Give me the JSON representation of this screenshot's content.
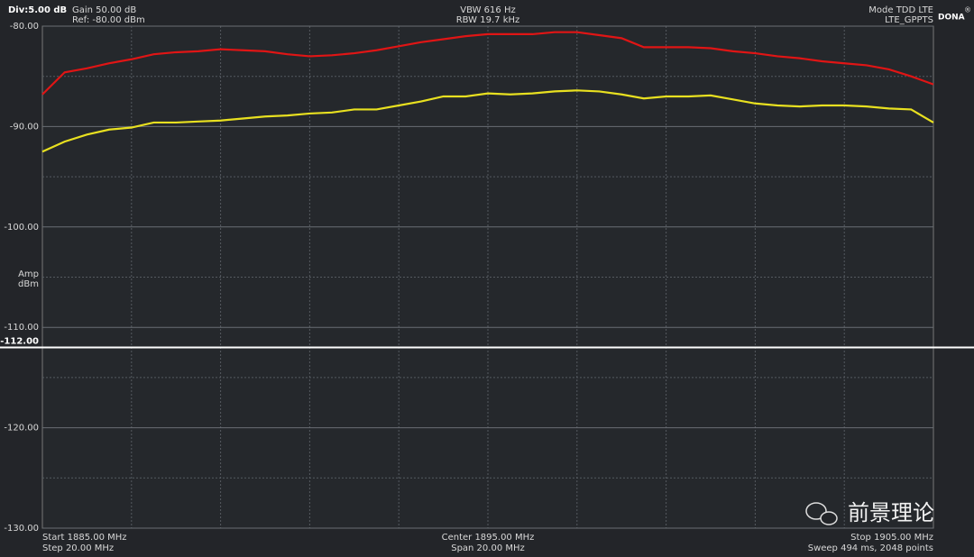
{
  "chart_data": {
    "type": "line",
    "header": {
      "div": "Div:5.00 dB",
      "gain": "Gain 50.00 dB",
      "ref": "Ref: -80.00 dBm",
      "vbw": "VBW 616 Hz",
      "rbw": "RBW 19.7 kHz",
      "mode": "Mode TDD LTE",
      "standard": "LTE_GPPTS",
      "logo": "DONA",
      "logo_mark": "®"
    },
    "footer": {
      "start": "Start 1885.00 MHz",
      "step": "Step 20.00 MHz",
      "center": "Center 1895.00 MHz",
      "span": "Span 20.00 MHz",
      "stop": "Stop 1905.00 MHz",
      "sweep": "Sweep 494 ms, 2048 points"
    },
    "y_label": [
      "Amp",
      "dBm"
    ],
    "watermark": "前景理论",
    "x": [
      1885,
      1885.5,
      1886,
      1886.5,
      1887,
      1887.5,
      1888,
      1888.5,
      1889,
      1889.5,
      1890,
      1890.5,
      1891,
      1891.5,
      1892,
      1892.5,
      1893,
      1893.5,
      1894,
      1894.5,
      1895,
      1895.5,
      1896,
      1896.5,
      1897,
      1897.5,
      1898,
      1898.5,
      1899,
      1899.5,
      1900,
      1900.5,
      1901,
      1901.5,
      1902,
      1902.5,
      1903,
      1903.5,
      1904,
      1904.5,
      1905
    ],
    "series": [
      {
        "color": "#e01515",
        "values": [
          -86.8,
          -84.6,
          -84.2,
          -83.7,
          -83.3,
          -82.8,
          -82.6,
          -82.5,
          -82.3,
          -82.4,
          -82.5,
          -82.8,
          -83.0,
          -82.9,
          -82.7,
          -82.4,
          -82.0,
          -81.6,
          -81.3,
          -81.0,
          -80.8,
          -80.8,
          -80.8,
          -80.6,
          -80.6,
          -80.9,
          -81.2,
          -82.1,
          -82.1,
          -82.1,
          -82.2,
          -82.5,
          -82.7,
          -83.0,
          -83.2,
          -83.5,
          -83.7,
          -83.9,
          -84.3,
          -85.0,
          -85.8
        ]
      },
      {
        "color": "#e8e020",
        "values": [
          -92.5,
          -91.5,
          -90.8,
          -90.3,
          -90.1,
          -89.6,
          -89.6,
          -89.5,
          -89.4,
          -89.2,
          -89.0,
          -88.9,
          -88.7,
          -88.6,
          -88.3,
          -88.3,
          -87.9,
          -87.5,
          -87.0,
          -87.0,
          -86.7,
          -86.8,
          -86.7,
          -86.5,
          -86.4,
          -86.5,
          -86.8,
          -87.2,
          -87.0,
          -87.0,
          -86.9,
          -87.3,
          -87.7,
          -87.9,
          -88.0,
          -87.9,
          -87.9,
          -88.0,
          -88.2,
          -88.3,
          -89.6
        ]
      }
    ],
    "xlim": [
      1885,
      1905
    ],
    "xticks": [
      1887,
      1889,
      1891,
      1893,
      1895,
      1897,
      1899,
      1901,
      1903
    ],
    "ylim": [
      -130,
      -80
    ],
    "yticks": [
      {
        "value": -80,
        "label": "-80.00"
      },
      {
        "value": -90,
        "label": "-90.00"
      },
      {
        "value": -100,
        "label": "-100.00"
      },
      {
        "value": -110,
        "label": "-110.00"
      },
      {
        "value": -120,
        "label": "-120.00"
      },
      {
        "value": -130,
        "label": "-130.00"
      }
    ],
    "minor_yticks": [
      -85,
      -95,
      -105,
      -115,
      -125
    ],
    "reference_line": {
      "value": -112,
      "label": "-112.00",
      "color": "#ffffff"
    },
    "grid": true
  }
}
